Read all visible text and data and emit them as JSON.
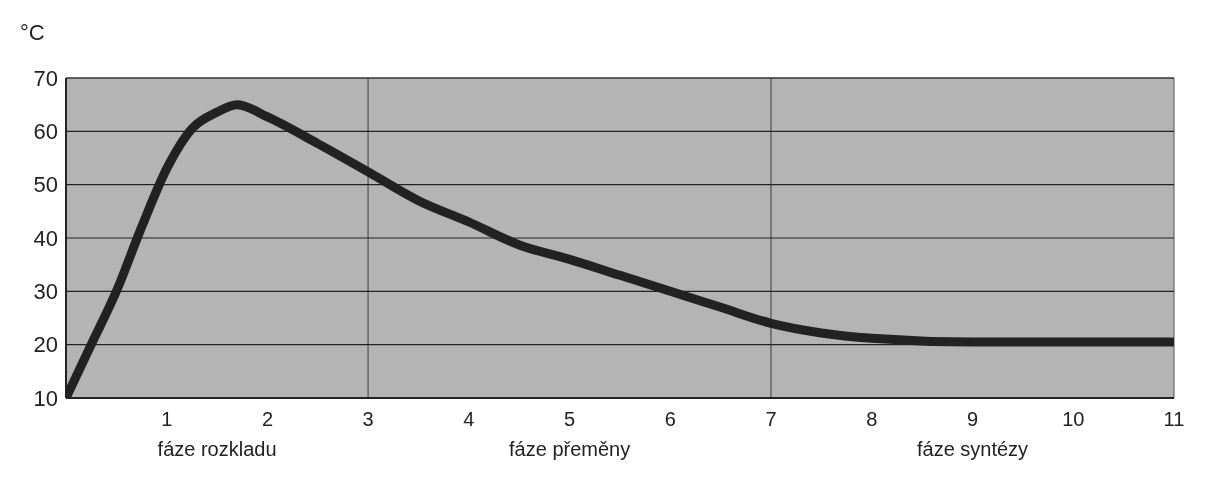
{
  "chart_data": {
    "type": "line",
    "ylabel": "°C",
    "x": [
      0,
      0.25,
      0.5,
      0.75,
      1,
      1.25,
      1.5,
      1.7,
      2,
      2.5,
      3,
      3.5,
      4,
      4.5,
      5,
      5.5,
      6,
      6.5,
      7,
      7.5,
      8,
      9,
      10,
      11
    ],
    "series": [
      {
        "color": "#222222",
        "values": [
          10,
          20,
          30,
          42,
          53,
          60.5,
          63.6,
          65,
          62.7,
          57.7,
          52.4,
          47,
          43,
          38.7,
          36,
          33,
          30,
          27,
          24,
          22.2,
          21.2,
          20.5,
          20.5,
          20.5
        ]
      }
    ],
    "xlim": [
      0,
      11
    ],
    "xticks": [
      1,
      2,
      3,
      4,
      5,
      6,
      7,
      8,
      9,
      10,
      11
    ],
    "ylim": [
      10,
      70
    ],
    "yticks": [
      10,
      20,
      30,
      40,
      50,
      60,
      70
    ],
    "grid": "y",
    "marker": "none",
    "line_style": "solid",
    "legend": false,
    "bands": [
      {
        "axis": "x",
        "from": 0,
        "to": 3,
        "label": "fáze rozkladu",
        "color": "#b4b4b4"
      },
      {
        "axis": "x",
        "from": 3,
        "to": 7,
        "label": "fáze přeměny",
        "color": "#b4b4b4"
      },
      {
        "axis": "x",
        "from": 7,
        "to": 11,
        "label": "fáze syntézy",
        "color": "#b4b4b4"
      }
    ]
  }
}
